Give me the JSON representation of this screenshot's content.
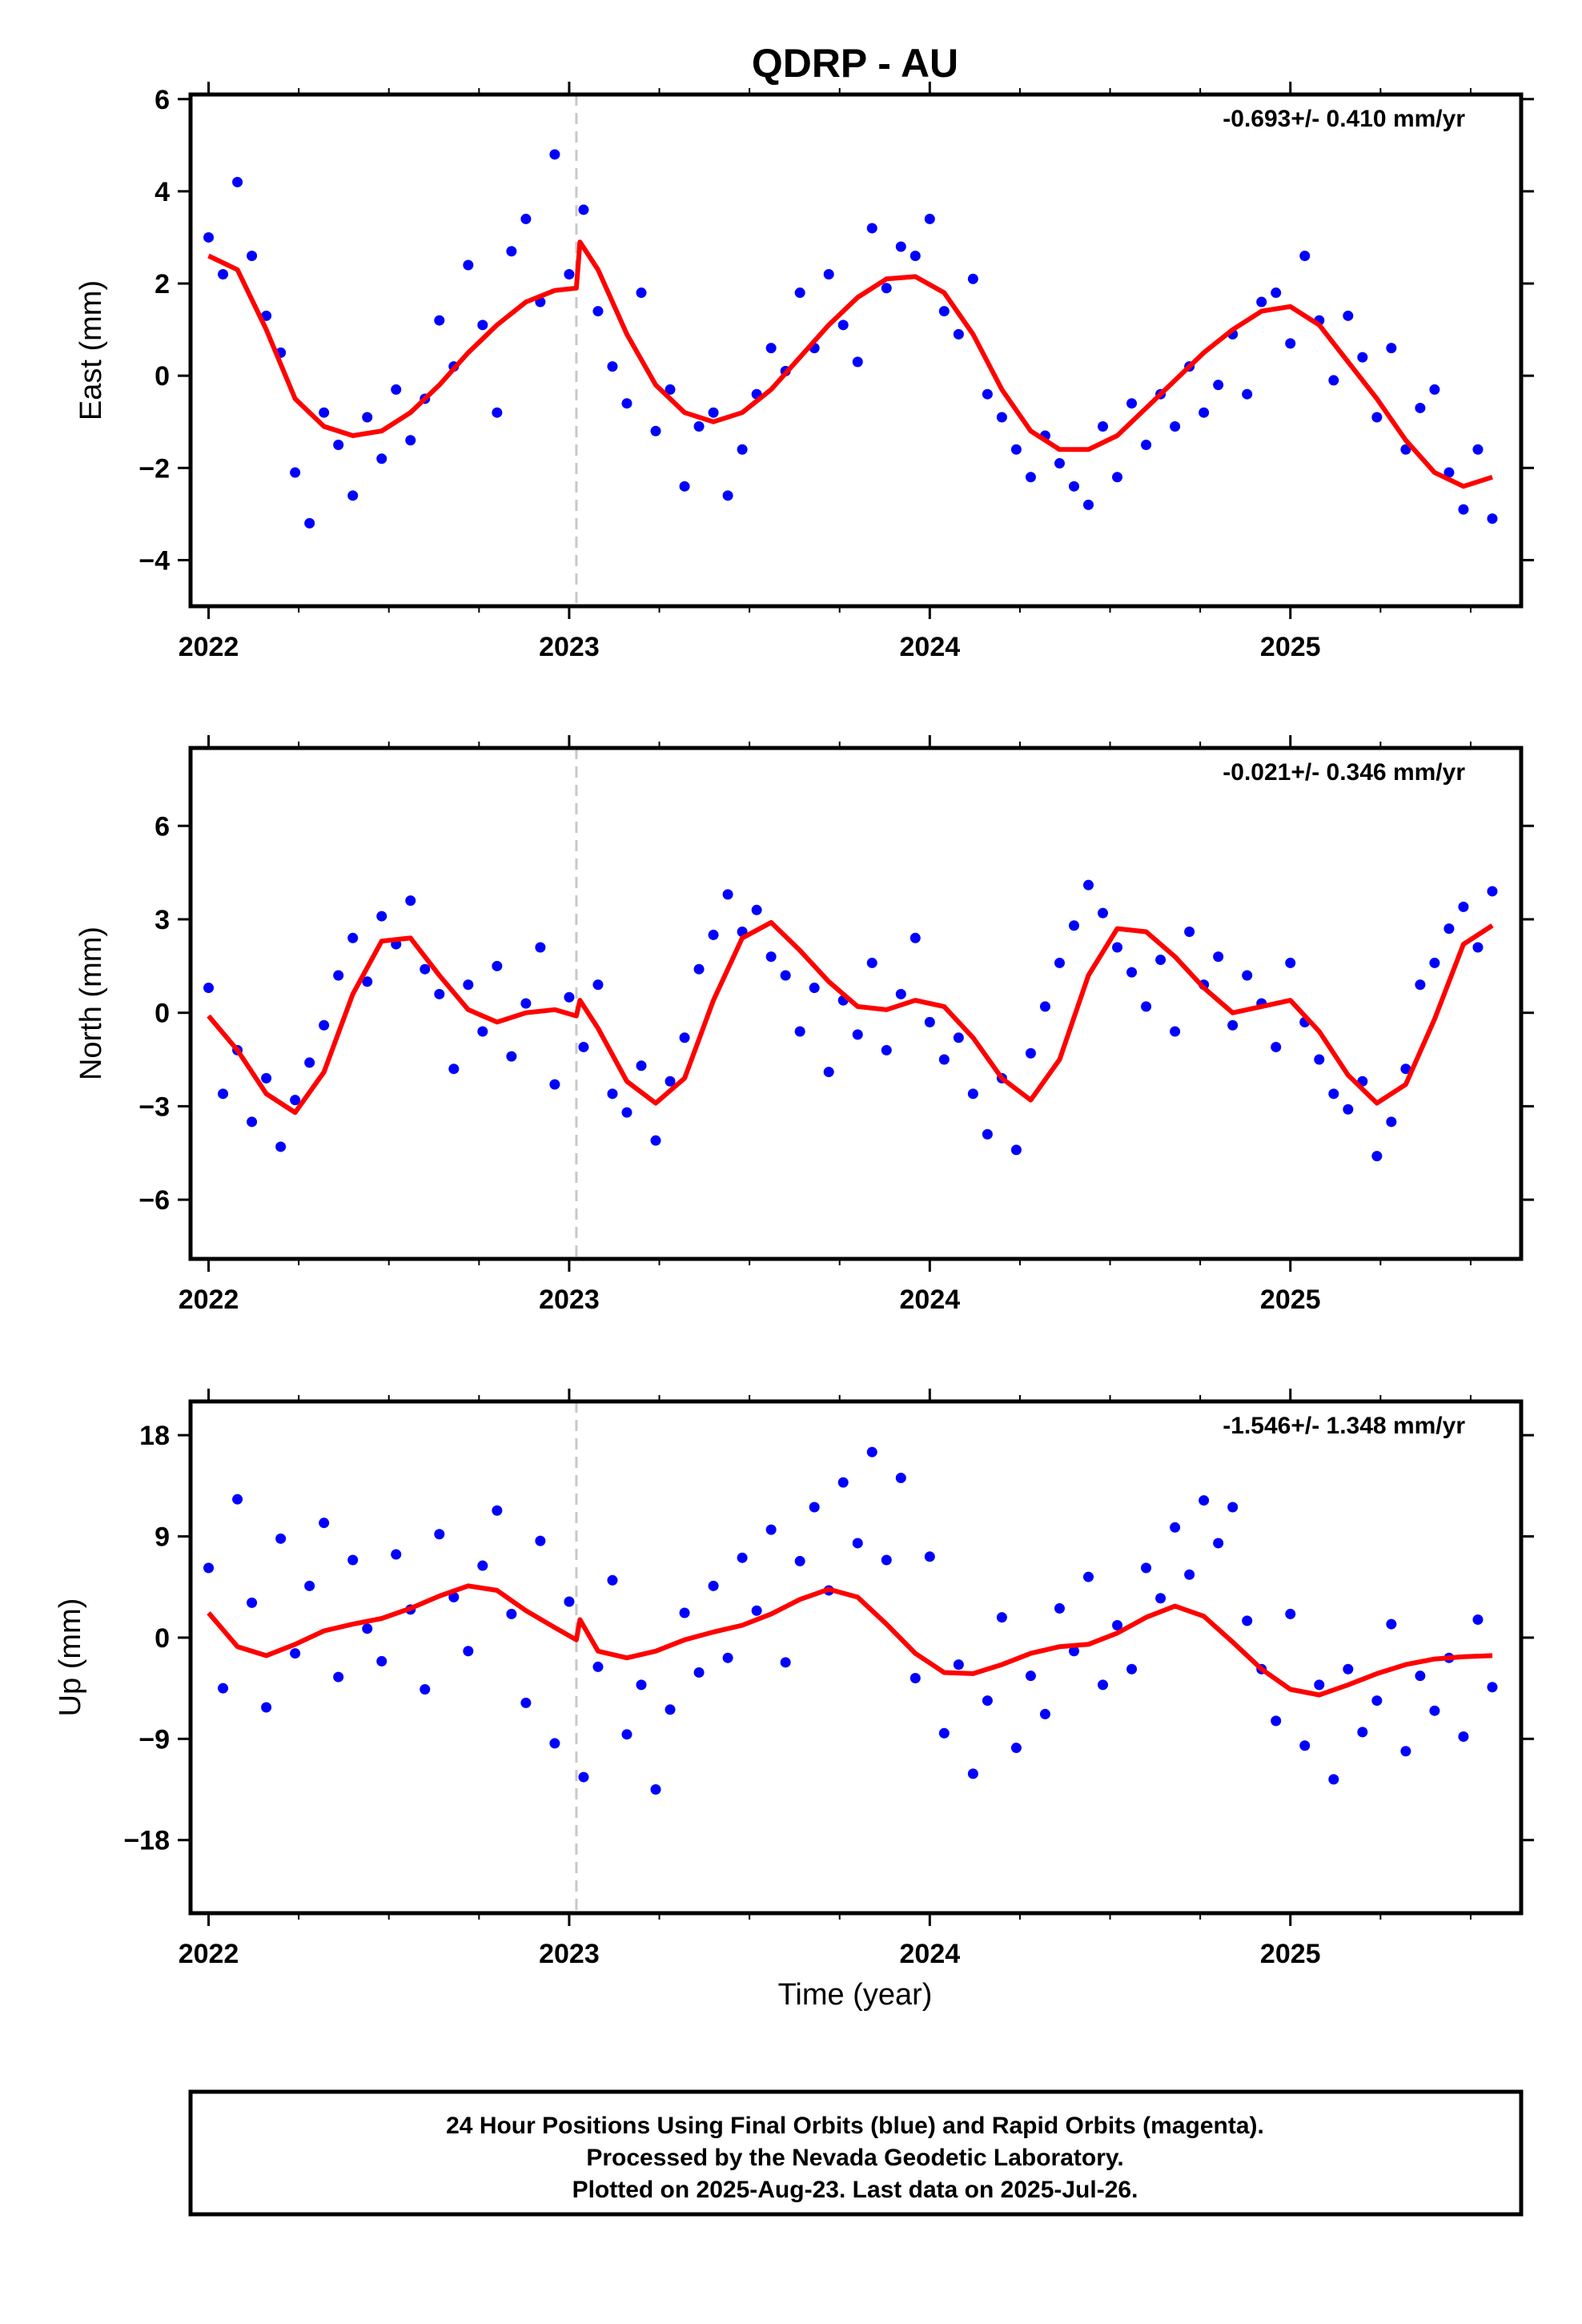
{
  "title": "QDRP - AU",
  "xlabel": "Time (year)",
  "footer": {
    "line1": "24 Hour Positions Using Final Orbits (blue) and Rapid Orbits (magenta).",
    "line2": "Processed by the Nevada Geodetic Laboratory.",
    "line3": "Plotted on 2025-Aug-23. Last data on 2025-Jul-26."
  },
  "colors": {
    "data": "#0000ff",
    "model": "#ff0000",
    "reference_line": "#c8c8c8",
    "frame": "#000000"
  },
  "chart_data": [
    {
      "type": "scatter",
      "ylabel": "East (mm)",
      "rate_label": "-0.693+/- 0.410 mm/yr",
      "xlim": [
        2021.95,
        2025.64
      ],
      "ylim": [
        -5,
        6.1
      ],
      "xticks": [
        2022,
        2023,
        2024,
        2025
      ],
      "xtick_labels": [
        "2022",
        "2023",
        "2024",
        "2025"
      ],
      "yticks": [
        -4,
        -2,
        0,
        2,
        4,
        6
      ],
      "ytick_labels": [
        "−4",
        "−2",
        "0",
        "2",
        "4",
        "6"
      ],
      "reference_line_x": 2023.02,
      "series": [
        {
          "role": "observations",
          "x": [
            2022.0,
            2022.04,
            2022.08,
            2022.12,
            2022.16,
            2022.2,
            2022.24,
            2022.28,
            2022.32,
            2022.36,
            2022.4,
            2022.44,
            2022.48,
            2022.52,
            2022.56,
            2022.6,
            2022.64,
            2022.68,
            2022.72,
            2022.76,
            2022.8,
            2022.84,
            2022.88,
            2022.92,
            2022.96,
            2023.0,
            2023.04,
            2023.08,
            2023.12,
            2023.16,
            2023.2,
            2023.24,
            2023.28,
            2023.32,
            2023.36,
            2023.4,
            2023.44,
            2023.48,
            2023.52,
            2023.56,
            2023.6,
            2023.64,
            2023.68,
            2023.72,
            2023.76,
            2023.8,
            2023.84,
            2023.88,
            2023.92,
            2023.96,
            2024.0,
            2024.04,
            2024.08,
            2024.12,
            2024.16,
            2024.2,
            2024.24,
            2024.28,
            2024.32,
            2024.36,
            2024.4,
            2024.44,
            2024.48,
            2024.52,
            2024.56,
            2024.6,
            2024.64,
            2024.68,
            2024.72,
            2024.76,
            2024.8,
            2024.84,
            2024.88,
            2024.92,
            2024.96,
            2025.0,
            2025.04,
            2025.08,
            2025.12,
            2025.16,
            2025.2,
            2025.24,
            2025.28,
            2025.32,
            2025.36,
            2025.4,
            2025.44,
            2025.48,
            2025.52,
            2025.56
          ],
          "y": [
            3.0,
            2.2,
            4.2,
            2.6,
            1.3,
            0.5,
            -2.1,
            -3.2,
            -0.8,
            -1.5,
            -2.6,
            -0.9,
            -1.8,
            -0.3,
            -1.4,
            -0.5,
            1.2,
            0.2,
            2.4,
            1.1,
            -0.8,
            2.7,
            3.4,
            1.6,
            4.8,
            2.2,
            3.6,
            1.4,
            0.2,
            -0.6,
            1.8,
            -1.2,
            -0.3,
            -2.4,
            -1.1,
            -0.8,
            -2.6,
            -1.6,
            -0.4,
            0.6,
            0.1,
            1.8,
            0.6,
            2.2,
            1.1,
            0.3,
            3.2,
            1.9,
            2.8,
            2.6,
            3.4,
            1.4,
            0.9,
            2.1,
            -0.4,
            -0.9,
            -1.6,
            -2.2,
            -1.3,
            -1.9,
            -2.4,
            -2.8,
            -1.1,
            -2.2,
            -0.6,
            -1.5,
            -0.4,
            -1.1,
            0.2,
            -0.8,
            -0.2,
            0.9,
            -0.4,
            1.6,
            1.8,
            0.7,
            2.6,
            1.2,
            -0.1,
            1.3,
            0.4,
            -0.9,
            0.6,
            -1.6,
            -0.7,
            -0.3,
            -2.1,
            -2.9,
            -1.6,
            -3.1
          ]
        },
        {
          "role": "model",
          "x": [
            2022.0,
            2022.08,
            2022.16,
            2022.24,
            2022.32,
            2022.4,
            2022.48,
            2022.56,
            2022.64,
            2022.72,
            2022.8,
            2022.88,
            2022.96,
            2023.02,
            2023.03,
            2023.08,
            2023.16,
            2023.24,
            2023.32,
            2023.4,
            2023.48,
            2023.56,
            2023.64,
            2023.72,
            2023.8,
            2023.88,
            2023.96,
            2024.04,
            2024.12,
            2024.2,
            2024.28,
            2024.36,
            2024.44,
            2024.52,
            2024.6,
            2024.68,
            2024.76,
            2024.84,
            2024.92,
            2025.0,
            2025.08,
            2025.16,
            2025.24,
            2025.32,
            2025.4,
            2025.48,
            2025.56
          ],
          "y": [
            2.6,
            2.3,
            1.0,
            -0.5,
            -1.1,
            -1.3,
            -1.2,
            -0.8,
            -0.2,
            0.5,
            1.1,
            1.6,
            1.85,
            1.9,
            2.9,
            2.3,
            0.9,
            -0.2,
            -0.8,
            -1.0,
            -0.8,
            -0.3,
            0.4,
            1.1,
            1.7,
            2.1,
            2.15,
            1.8,
            0.9,
            -0.3,
            -1.2,
            -1.6,
            -1.6,
            -1.3,
            -0.7,
            -0.1,
            0.5,
            1.0,
            1.4,
            1.5,
            1.1,
            0.3,
            -0.5,
            -1.4,
            -2.1,
            -2.4,
            -2.2
          ]
        }
      ]
    },
    {
      "type": "scatter",
      "ylabel": "North (mm)",
      "rate_label": "-0.021+/- 0.346 mm/yr",
      "xlim": [
        2021.95,
        2025.64
      ],
      "ylim": [
        -7.9,
        8.5
      ],
      "xticks": [
        2022,
        2023,
        2024,
        2025
      ],
      "xtick_labels": [
        "2022",
        "2023",
        "2024",
        "2025"
      ],
      "yticks": [
        -6,
        -3,
        0,
        3,
        6
      ],
      "ytick_labels": [
        "−6",
        "−3",
        "0",
        "3",
        "6"
      ],
      "reference_line_x": 2023.02,
      "series": [
        {
          "role": "observations",
          "x": [
            2022.0,
            2022.04,
            2022.08,
            2022.12,
            2022.16,
            2022.2,
            2022.24,
            2022.28,
            2022.32,
            2022.36,
            2022.4,
            2022.44,
            2022.48,
            2022.52,
            2022.56,
            2022.6,
            2022.64,
            2022.68,
            2022.72,
            2022.76,
            2022.8,
            2022.84,
            2022.88,
            2022.92,
            2022.96,
            2023.0,
            2023.04,
            2023.08,
            2023.12,
            2023.16,
            2023.2,
            2023.24,
            2023.28,
            2023.32,
            2023.36,
            2023.4,
            2023.44,
            2023.48,
            2023.52,
            2023.56,
            2023.6,
            2023.64,
            2023.68,
            2023.72,
            2023.76,
            2023.8,
            2023.84,
            2023.88,
            2023.92,
            2023.96,
            2024.0,
            2024.04,
            2024.08,
            2024.12,
            2024.16,
            2024.2,
            2024.24,
            2024.28,
            2024.32,
            2024.36,
            2024.4,
            2024.44,
            2024.48,
            2024.52,
            2024.56,
            2024.6,
            2024.64,
            2024.68,
            2024.72,
            2024.76,
            2024.8,
            2024.84,
            2024.88,
            2024.92,
            2024.96,
            2025.0,
            2025.04,
            2025.08,
            2025.12,
            2025.16,
            2025.2,
            2025.24,
            2025.28,
            2025.32,
            2025.36,
            2025.4,
            2025.44,
            2025.48,
            2025.52,
            2025.56
          ],
          "y": [
            0.8,
            -2.6,
            -1.2,
            -3.5,
            -2.1,
            -4.3,
            -2.8,
            -1.6,
            -0.4,
            1.2,
            2.4,
            1.0,
            3.1,
            2.2,
            3.6,
            1.4,
            0.6,
            -1.8,
            0.9,
            -0.6,
            1.5,
            -1.4,
            0.3,
            2.1,
            -2.3,
            0.5,
            -1.1,
            0.9,
            -2.6,
            -3.2,
            -1.7,
            -4.1,
            -2.2,
            -0.8,
            1.4,
            2.5,
            3.8,
            2.6,
            3.3,
            1.8,
            1.2,
            -0.6,
            0.8,
            -1.9,
            0.4,
            -0.7,
            1.6,
            -1.2,
            0.6,
            2.4,
            -0.3,
            -1.5,
            -0.8,
            -2.6,
            -3.9,
            -2.1,
            -4.4,
            -1.3,
            0.2,
            1.6,
            2.8,
            4.1,
            3.2,
            2.1,
            1.3,
            0.2,
            1.7,
            -0.6,
            2.6,
            0.9,
            1.8,
            -0.4,
            1.2,
            0.3,
            -1.1,
            1.6,
            -0.3,
            -1.5,
            -2.6,
            -3.1,
            -2.2,
            -4.6,
            -3.5,
            -1.8,
            0.9,
            1.6,
            2.7,
            3.4,
            2.1,
            3.9
          ]
        },
        {
          "role": "model",
          "x": [
            2022.0,
            2022.08,
            2022.16,
            2022.24,
            2022.32,
            2022.4,
            2022.48,
            2022.56,
            2022.64,
            2022.72,
            2022.8,
            2022.88,
            2022.96,
            2023.02,
            2023.03,
            2023.08,
            2023.16,
            2023.24,
            2023.32,
            2023.4,
            2023.48,
            2023.56,
            2023.64,
            2023.72,
            2023.8,
            2023.88,
            2023.96,
            2024.04,
            2024.12,
            2024.2,
            2024.28,
            2024.36,
            2024.44,
            2024.52,
            2024.6,
            2024.68,
            2024.76,
            2024.84,
            2024.92,
            2025.0,
            2025.08,
            2025.16,
            2025.24,
            2025.32,
            2025.4,
            2025.48,
            2025.56
          ],
          "y": [
            -0.1,
            -1.2,
            -2.6,
            -3.2,
            -1.9,
            0.6,
            2.3,
            2.4,
            1.2,
            0.1,
            -0.3,
            0.0,
            0.1,
            -0.1,
            0.4,
            -0.5,
            -2.2,
            -2.9,
            -2.1,
            0.4,
            2.4,
            2.9,
            2.0,
            1.0,
            0.2,
            0.1,
            0.4,
            0.2,
            -0.8,
            -2.1,
            -2.8,
            -1.5,
            1.2,
            2.7,
            2.6,
            1.8,
            0.8,
            0.0,
            0.2,
            0.4,
            -0.6,
            -2.0,
            -2.9,
            -2.3,
            -0.2,
            2.2,
            2.8
          ]
        }
      ]
    },
    {
      "type": "scatter",
      "ylabel": "Up (mm)",
      "rate_label": "-1.546+/- 1.348 mm/yr",
      "xlim": [
        2021.95,
        2025.64
      ],
      "ylim": [
        -24.5,
        21
      ],
      "xticks": [
        2022,
        2023,
        2024,
        2025
      ],
      "xtick_labels": [
        "2022",
        "2023",
        "2024",
        "2025"
      ],
      "yticks": [
        -18,
        -9,
        0,
        9,
        18
      ],
      "ytick_labels": [
        "−18",
        "−9",
        "0",
        "9",
        "18"
      ],
      "reference_line_x": 2023.02,
      "series": [
        {
          "role": "observations",
          "x": [
            2022.0,
            2022.04,
            2022.08,
            2022.12,
            2022.16,
            2022.2,
            2022.24,
            2022.28,
            2022.32,
            2022.36,
            2022.4,
            2022.44,
            2022.48,
            2022.52,
            2022.56,
            2022.6,
            2022.64,
            2022.68,
            2022.72,
            2022.76,
            2022.8,
            2022.84,
            2022.88,
            2022.92,
            2022.96,
            2023.0,
            2023.04,
            2023.08,
            2023.12,
            2023.16,
            2023.2,
            2023.24,
            2023.28,
            2023.32,
            2023.36,
            2023.4,
            2023.44,
            2023.48,
            2023.52,
            2023.56,
            2023.6,
            2023.64,
            2023.68,
            2023.72,
            2023.76,
            2023.8,
            2023.84,
            2023.88,
            2023.92,
            2023.96,
            2024.0,
            2024.04,
            2024.08,
            2024.12,
            2024.16,
            2024.2,
            2024.24,
            2024.28,
            2024.32,
            2024.36,
            2024.4,
            2024.44,
            2024.48,
            2024.52,
            2024.56,
            2024.6,
            2024.64,
            2024.68,
            2024.72,
            2024.76,
            2024.8,
            2024.84,
            2024.88,
            2024.92,
            2024.96,
            2025.0,
            2025.04,
            2025.08,
            2025.12,
            2025.16,
            2025.2,
            2025.24,
            2025.28,
            2025.32,
            2025.36,
            2025.4,
            2025.44,
            2025.48,
            2025.52,
            2025.56
          ],
          "y": [
            6.2,
            -4.5,
            12.3,
            3.1,
            -6.2,
            8.8,
            -1.4,
            4.6,
            10.2,
            -3.5,
            6.9,
            0.8,
            -2.1,
            7.4,
            2.5,
            -4.6,
            9.2,
            3.6,
            -1.2,
            6.4,
            11.3,
            2.1,
            -5.8,
            8.6,
            -9.4,
            3.2,
            -12.4,
            -2.6,
            5.1,
            -8.6,
            -4.2,
            -13.5,
            -6.4,
            2.2,
            -3.1,
            4.6,
            -1.8,
            7.1,
            2.4,
            9.6,
            -2.2,
            6.8,
            11.6,
            4.2,
            13.8,
            8.4,
            16.5,
            6.9,
            14.2,
            -3.6,
            7.2,
            -8.5,
            -2.4,
            -12.1,
            -5.6,
            1.8,
            -9.8,
            -3.4,
            -6.8,
            2.6,
            -1.2,
            5.4,
            -4.2,
            1.1,
            -2.8,
            6.2,
            3.5,
            9.8,
            5.6,
            12.2,
            8.4,
            11.6,
            1.5,
            -2.8,
            -7.4,
            2.1,
            -9.6,
            -4.2,
            -12.6,
            -2.8,
            -8.4,
            -5.6,
            1.2,
            -10.1,
            -3.4,
            -6.5,
            -1.8,
            -8.8,
            1.6,
            -4.4
          ]
        },
        {
          "role": "model",
          "x": [
            2022.0,
            2022.08,
            2022.16,
            2022.24,
            2022.32,
            2022.4,
            2022.48,
            2022.56,
            2022.64,
            2022.72,
            2022.8,
            2022.88,
            2022.96,
            2023.02,
            2023.03,
            2023.08,
            2023.16,
            2023.24,
            2023.32,
            2023.4,
            2023.48,
            2023.56,
            2023.64,
            2023.72,
            2023.8,
            2023.88,
            2023.96,
            2024.04,
            2024.12,
            2024.2,
            2024.28,
            2024.36,
            2024.44,
            2024.52,
            2024.6,
            2024.68,
            2024.76,
            2024.84,
            2024.92,
            2025.0,
            2025.08,
            2025.16,
            2025.24,
            2025.32,
            2025.4,
            2025.48,
            2025.56
          ],
          "y": [
            2.2,
            -0.8,
            -1.6,
            -0.6,
            0.6,
            1.2,
            1.7,
            2.6,
            3.7,
            4.6,
            4.2,
            2.4,
            0.9,
            -0.2,
            1.6,
            -1.2,
            -1.8,
            -1.2,
            -0.2,
            0.5,
            1.1,
            2.1,
            3.4,
            4.3,
            3.6,
            1.2,
            -1.4,
            -3.1,
            -3.2,
            -2.4,
            -1.4,
            -0.8,
            -0.6,
            0.4,
            1.8,
            2.8,
            1.9,
            -0.4,
            -2.8,
            -4.6,
            -5.1,
            -4.2,
            -3.2,
            -2.4,
            -1.9,
            -1.7,
            -1.6
          ]
        }
      ]
    }
  ]
}
